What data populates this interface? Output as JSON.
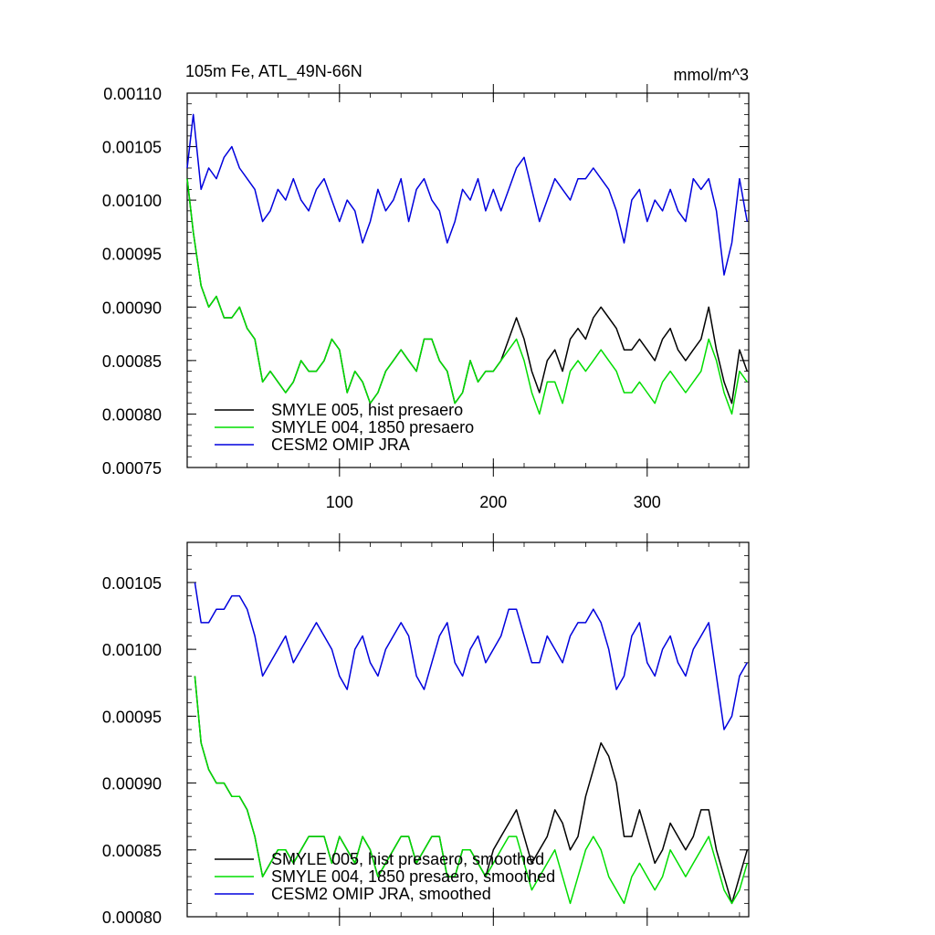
{
  "figure": {
    "title": "105m Fe, ATL_49N-66N",
    "units": "mmol/m^3"
  },
  "chart_data": [
    {
      "type": "line",
      "title": "105m Fe, ATL_49N-66N",
      "units_label": "mmol/m^3",
      "xlabel": "",
      "ylabel": "",
      "xlim": [
        1,
        366
      ],
      "ylim": [
        0.00075,
        0.0011
      ],
      "xticks": [
        100,
        200,
        300
      ],
      "xtick_labels": [
        "100",
        "200",
        "300"
      ],
      "yticks": [
        0.00075,
        0.0008,
        0.00085,
        0.0009,
        0.00095,
        0.001,
        0.00105,
        0.0011
      ],
      "ytick_labels": [
        "0.00075",
        "0.00080",
        "0.00085",
        "0.00090",
        "0.00095",
        "0.00100",
        "0.00105",
        "0.00110"
      ],
      "grid": false,
      "legend_position": "bottom-left",
      "series": [
        {
          "name": "SMYLE 005, hist presaero",
          "color": "#000000",
          "x": [
            1,
            5,
            10,
            15,
            20,
            25,
            30,
            35,
            40,
            45,
            50,
            55,
            60,
            65,
            70,
            75,
            80,
            85,
            90,
            95,
            100,
            105,
            110,
            115,
            120,
            125,
            130,
            135,
            140,
            145,
            150,
            155,
            160,
            165,
            170,
            175,
            180,
            185,
            190,
            195,
            200,
            205,
            210,
            215,
            220,
            225,
            230,
            235,
            240,
            245,
            250,
            255,
            260,
            265,
            270,
            275,
            280,
            285,
            290,
            295,
            300,
            305,
            310,
            315,
            320,
            325,
            330,
            335,
            340,
            345,
            350,
            355,
            360,
            365
          ],
          "y": [
            0.00102,
            0.00097,
            0.00092,
            0.0009,
            0.00091,
            0.00089,
            0.00089,
            0.0009,
            0.00088,
            0.00087,
            0.00083,
            0.00084,
            0.00083,
            0.00082,
            0.00083,
            0.00085,
            0.00084,
            0.00084,
            0.00085,
            0.00087,
            0.00086,
            0.00082,
            0.00084,
            0.00083,
            0.00081,
            0.00082,
            0.00084,
            0.00085,
            0.00086,
            0.00085,
            0.00084,
            0.00087,
            0.00087,
            0.00085,
            0.00084,
            0.00081,
            0.00082,
            0.00085,
            0.00083,
            0.00084,
            0.00084,
            0.00085,
            0.00087,
            0.00089,
            0.00087,
            0.00084,
            0.00082,
            0.00085,
            0.00086,
            0.00084,
            0.00087,
            0.00088,
            0.00087,
            0.00089,
            0.0009,
            0.00089,
            0.00088,
            0.00086,
            0.00086,
            0.00087,
            0.00086,
            0.00085,
            0.00087,
            0.00088,
            0.00086,
            0.00085,
            0.00086,
            0.00087,
            0.0009,
            0.00086,
            0.00083,
            0.00081,
            0.00086,
            0.00084
          ]
        },
        {
          "name": "SMYLE 004, 1850 presaero",
          "color": "#00dd00",
          "x": [
            1,
            5,
            10,
            15,
            20,
            25,
            30,
            35,
            40,
            45,
            50,
            55,
            60,
            65,
            70,
            75,
            80,
            85,
            90,
            95,
            100,
            105,
            110,
            115,
            120,
            125,
            130,
            135,
            140,
            145,
            150,
            155,
            160,
            165,
            170,
            175,
            180,
            185,
            190,
            195,
            200,
            205,
            210,
            215,
            220,
            225,
            230,
            235,
            240,
            245,
            250,
            255,
            260,
            265,
            270,
            275,
            280,
            285,
            290,
            295,
            300,
            305,
            310,
            315,
            320,
            325,
            330,
            335,
            340,
            345,
            350,
            355,
            360,
            365
          ],
          "y": [
            0.00102,
            0.00097,
            0.00092,
            0.0009,
            0.00091,
            0.00089,
            0.00089,
            0.0009,
            0.00088,
            0.00087,
            0.00083,
            0.00084,
            0.00083,
            0.00082,
            0.00083,
            0.00085,
            0.00084,
            0.00084,
            0.00085,
            0.00087,
            0.00086,
            0.00082,
            0.00084,
            0.00083,
            0.00081,
            0.00082,
            0.00084,
            0.00085,
            0.00086,
            0.00085,
            0.00084,
            0.00087,
            0.00087,
            0.00085,
            0.00084,
            0.00081,
            0.00082,
            0.00085,
            0.00083,
            0.00084,
            0.00084,
            0.00085,
            0.00086,
            0.00087,
            0.00085,
            0.00082,
            0.0008,
            0.00083,
            0.00083,
            0.00081,
            0.00084,
            0.00085,
            0.00084,
            0.00085,
            0.00086,
            0.00085,
            0.00084,
            0.00082,
            0.00082,
            0.00083,
            0.00082,
            0.00081,
            0.00083,
            0.00084,
            0.00083,
            0.00082,
            0.00083,
            0.00084,
            0.00087,
            0.00085,
            0.00082,
            0.0008,
            0.00084,
            0.00083
          ]
        },
        {
          "name": "CESM2 OMIP JRA",
          "color": "#0000dd",
          "x": [
            1,
            5,
            10,
            15,
            20,
            25,
            30,
            35,
            40,
            45,
            50,
            55,
            60,
            65,
            70,
            75,
            80,
            85,
            90,
            95,
            100,
            105,
            110,
            115,
            120,
            125,
            130,
            135,
            140,
            145,
            150,
            155,
            160,
            165,
            170,
            175,
            180,
            185,
            190,
            195,
            200,
            205,
            210,
            215,
            220,
            225,
            230,
            235,
            240,
            245,
            250,
            255,
            260,
            265,
            270,
            275,
            280,
            285,
            290,
            295,
            300,
            305,
            310,
            315,
            320,
            325,
            330,
            335,
            340,
            345,
            350,
            355,
            360,
            365
          ],
          "y": [
            0.00103,
            0.00108,
            0.00101,
            0.00103,
            0.00102,
            0.00104,
            0.00105,
            0.00103,
            0.00102,
            0.00101,
            0.00098,
            0.00099,
            0.00101,
            0.001,
            0.00102,
            0.001,
            0.00099,
            0.00101,
            0.00102,
            0.001,
            0.00098,
            0.001,
            0.00099,
            0.00096,
            0.00098,
            0.00101,
            0.00099,
            0.001,
            0.00102,
            0.00098,
            0.00101,
            0.00102,
            0.001,
            0.00099,
            0.00096,
            0.00098,
            0.00101,
            0.001,
            0.00102,
            0.00099,
            0.00101,
            0.00099,
            0.00101,
            0.00103,
            0.00104,
            0.00101,
            0.00098,
            0.001,
            0.00102,
            0.00101,
            0.001,
            0.00102,
            0.00102,
            0.00103,
            0.00102,
            0.00101,
            0.00099,
            0.00096,
            0.001,
            0.00101,
            0.00098,
            0.001,
            0.00099,
            0.00101,
            0.00099,
            0.00098,
            0.00102,
            0.00101,
            0.00102,
            0.00099,
            0.00093,
            0.00096,
            0.00102,
            0.00098
          ]
        }
      ]
    },
    {
      "type": "line",
      "title": "",
      "xlabel": "",
      "ylabel": "",
      "xlim": [
        1,
        366
      ],
      "ylim": [
        0.0008,
        0.00108
      ],
      "xticks": [
        100,
        200,
        300
      ],
      "xtick_labels": [],
      "yticks": [
        0.0008,
        0.00085,
        0.0009,
        0.00095,
        0.001,
        0.00105
      ],
      "ytick_labels": [
        "0.00080",
        "0.00085",
        "0.00090",
        "0.00095",
        "0.00100",
        "0.00105"
      ],
      "grid": false,
      "legend_position": "bottom-left",
      "series": [
        {
          "name": "SMYLE 005, hist presaero, smoothed",
          "color": "#000000",
          "x": [
            6,
            10,
            15,
            20,
            25,
            30,
            35,
            40,
            45,
            50,
            55,
            60,
            65,
            70,
            75,
            80,
            85,
            90,
            95,
            100,
            105,
            110,
            115,
            120,
            125,
            130,
            135,
            140,
            145,
            150,
            155,
            160,
            165,
            170,
            175,
            180,
            185,
            190,
            195,
            200,
            205,
            210,
            215,
            220,
            225,
            230,
            235,
            240,
            245,
            250,
            255,
            260,
            265,
            270,
            275,
            280,
            285,
            290,
            295,
            300,
            305,
            310,
            315,
            320,
            325,
            330,
            335,
            340,
            345,
            350,
            355,
            360,
            365
          ],
          "y": [
            0.00098,
            0.00093,
            0.00091,
            0.0009,
            0.0009,
            0.00089,
            0.00089,
            0.00088,
            0.00086,
            0.00083,
            0.00084,
            0.00085,
            0.00085,
            0.00084,
            0.00085,
            0.00086,
            0.00086,
            0.00086,
            0.00084,
            0.00086,
            0.00085,
            0.00084,
            0.00086,
            0.00085,
            0.00083,
            0.00084,
            0.00085,
            0.00086,
            0.00086,
            0.00084,
            0.00085,
            0.00086,
            0.00086,
            0.00083,
            0.00083,
            0.00085,
            0.00085,
            0.00084,
            0.00083,
            0.00085,
            0.00086,
            0.00087,
            0.00088,
            0.00086,
            0.00084,
            0.00085,
            0.00086,
            0.00088,
            0.00087,
            0.00085,
            0.00086,
            0.00089,
            0.00091,
            0.00093,
            0.00092,
            0.0009,
            0.00086,
            0.00086,
            0.00088,
            0.00086,
            0.00084,
            0.00085,
            0.00087,
            0.00086,
            0.00085,
            0.00086,
            0.00088,
            0.00088,
            0.00085,
            0.00083,
            0.00081,
            0.00083,
            0.00085
          ]
        },
        {
          "name": "SMYLE 004, 1850 presaero, smoothed",
          "color": "#00dd00",
          "x": [
            6,
            10,
            15,
            20,
            25,
            30,
            35,
            40,
            45,
            50,
            55,
            60,
            65,
            70,
            75,
            80,
            85,
            90,
            95,
            100,
            105,
            110,
            115,
            120,
            125,
            130,
            135,
            140,
            145,
            150,
            155,
            160,
            165,
            170,
            175,
            180,
            185,
            190,
            195,
            200,
            205,
            210,
            215,
            220,
            225,
            230,
            235,
            240,
            245,
            250,
            255,
            260,
            265,
            270,
            275,
            280,
            285,
            290,
            295,
            300,
            305,
            310,
            315,
            320,
            325,
            330,
            335,
            340,
            345,
            350,
            355,
            360,
            365
          ],
          "y": [
            0.00098,
            0.00093,
            0.00091,
            0.0009,
            0.0009,
            0.00089,
            0.00089,
            0.00088,
            0.00086,
            0.00083,
            0.00084,
            0.00085,
            0.00085,
            0.00084,
            0.00085,
            0.00086,
            0.00086,
            0.00086,
            0.00084,
            0.00086,
            0.00085,
            0.00084,
            0.00086,
            0.00085,
            0.00083,
            0.00084,
            0.00085,
            0.00086,
            0.00086,
            0.00084,
            0.00085,
            0.00086,
            0.00086,
            0.00083,
            0.00083,
            0.00085,
            0.00085,
            0.00084,
            0.00083,
            0.00084,
            0.00085,
            0.00086,
            0.00086,
            0.00084,
            0.00082,
            0.00083,
            0.00084,
            0.00085,
            0.00083,
            0.00081,
            0.00083,
            0.00085,
            0.00086,
            0.00085,
            0.00083,
            0.00082,
            0.00081,
            0.00083,
            0.00084,
            0.00083,
            0.00082,
            0.00083,
            0.00085,
            0.00084,
            0.00083,
            0.00084,
            0.00085,
            0.00086,
            0.00084,
            0.00082,
            0.00081,
            0.00082,
            0.00084
          ]
        },
        {
          "name": "CESM2 OMIP JRA, smoothed",
          "color": "#0000dd",
          "x": [
            6,
            10,
            15,
            20,
            25,
            30,
            35,
            40,
            45,
            50,
            55,
            60,
            65,
            70,
            75,
            80,
            85,
            90,
            95,
            100,
            105,
            110,
            115,
            120,
            125,
            130,
            135,
            140,
            145,
            150,
            155,
            160,
            165,
            170,
            175,
            180,
            185,
            190,
            195,
            200,
            205,
            210,
            215,
            220,
            225,
            230,
            235,
            240,
            245,
            250,
            255,
            260,
            265,
            270,
            275,
            280,
            285,
            290,
            295,
            300,
            305,
            310,
            315,
            320,
            325,
            330,
            335,
            340,
            345,
            350,
            355,
            360,
            365
          ],
          "y": [
            0.00105,
            0.00102,
            0.00102,
            0.00103,
            0.00103,
            0.00104,
            0.00104,
            0.00103,
            0.00101,
            0.00098,
            0.00099,
            0.001,
            0.00101,
            0.00099,
            0.001,
            0.00101,
            0.00102,
            0.00101,
            0.001,
            0.00098,
            0.00097,
            0.001,
            0.00101,
            0.00099,
            0.00098,
            0.001,
            0.00101,
            0.00102,
            0.00101,
            0.00098,
            0.00097,
            0.00099,
            0.00101,
            0.00102,
            0.00099,
            0.00098,
            0.001,
            0.00101,
            0.00099,
            0.001,
            0.00101,
            0.00103,
            0.00103,
            0.00101,
            0.00099,
            0.00099,
            0.00101,
            0.001,
            0.00099,
            0.00101,
            0.00102,
            0.00102,
            0.00103,
            0.00102,
            0.001,
            0.00097,
            0.00098,
            0.00101,
            0.00102,
            0.00099,
            0.00098,
            0.001,
            0.00101,
            0.00099,
            0.00098,
            0.001,
            0.00101,
            0.00102,
            0.00098,
            0.00094,
            0.00095,
            0.00098,
            0.00099
          ]
        }
      ]
    }
  ]
}
